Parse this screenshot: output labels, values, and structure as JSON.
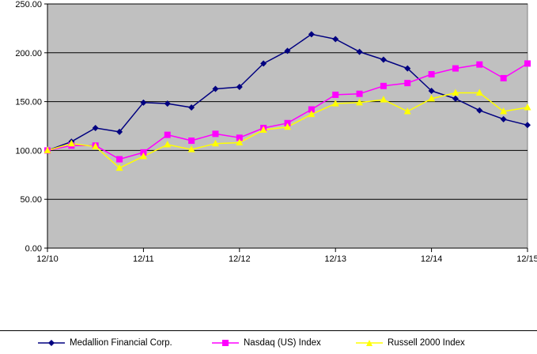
{
  "chart_data": {
    "type": "line",
    "title": "",
    "xlabel": "",
    "ylabel": "",
    "ylim": [
      0,
      250
    ],
    "y_ticks": [
      "0.00",
      "50.00",
      "100.00",
      "150.00",
      "200.00",
      "250.00"
    ],
    "x_tick_labels": [
      "12/10",
      "12/11",
      "12/12",
      "12/13",
      "12/14",
      "12/15"
    ],
    "x": [
      0,
      0.25,
      0.5,
      0.75,
      1,
      1.25,
      1.5,
      1.75,
      2,
      2.25,
      2.5,
      2.75,
      3,
      3.25,
      3.5,
      3.75,
      4,
      4.25,
      4.5,
      4.75,
      5
    ],
    "plot_background": "#c0c0c0",
    "grid": true,
    "legend_position": "bottom",
    "series": [
      {
        "name": "Medallion Financial Corp.",
        "color": "#000080",
        "marker": "diamond",
        "values": [
          100,
          109,
          123,
          119,
          149,
          148,
          144,
          163,
          165,
          189,
          202,
          219,
          214,
          201,
          193,
          184,
          161,
          153,
          141,
          132,
          126
        ]
      },
      {
        "name": "Nasdaq (US) Index",
        "color": "#ff00ff",
        "marker": "square",
        "values": [
          100,
          105,
          105,
          91,
          98,
          116,
          110,
          117,
          113,
          123,
          128,
          142,
          157,
          158,
          166,
          169,
          178,
          184,
          188,
          174,
          189
        ]
      },
      {
        "name": "Russell 2000 Index",
        "color": "#ffff00",
        "marker": "triangle",
        "values": [
          100,
          107,
          104,
          82,
          94,
          106,
          101,
          107,
          108,
          121,
          124,
          137,
          148,
          149,
          152,
          140,
          153,
          159,
          159,
          140,
          144
        ]
      }
    ]
  }
}
